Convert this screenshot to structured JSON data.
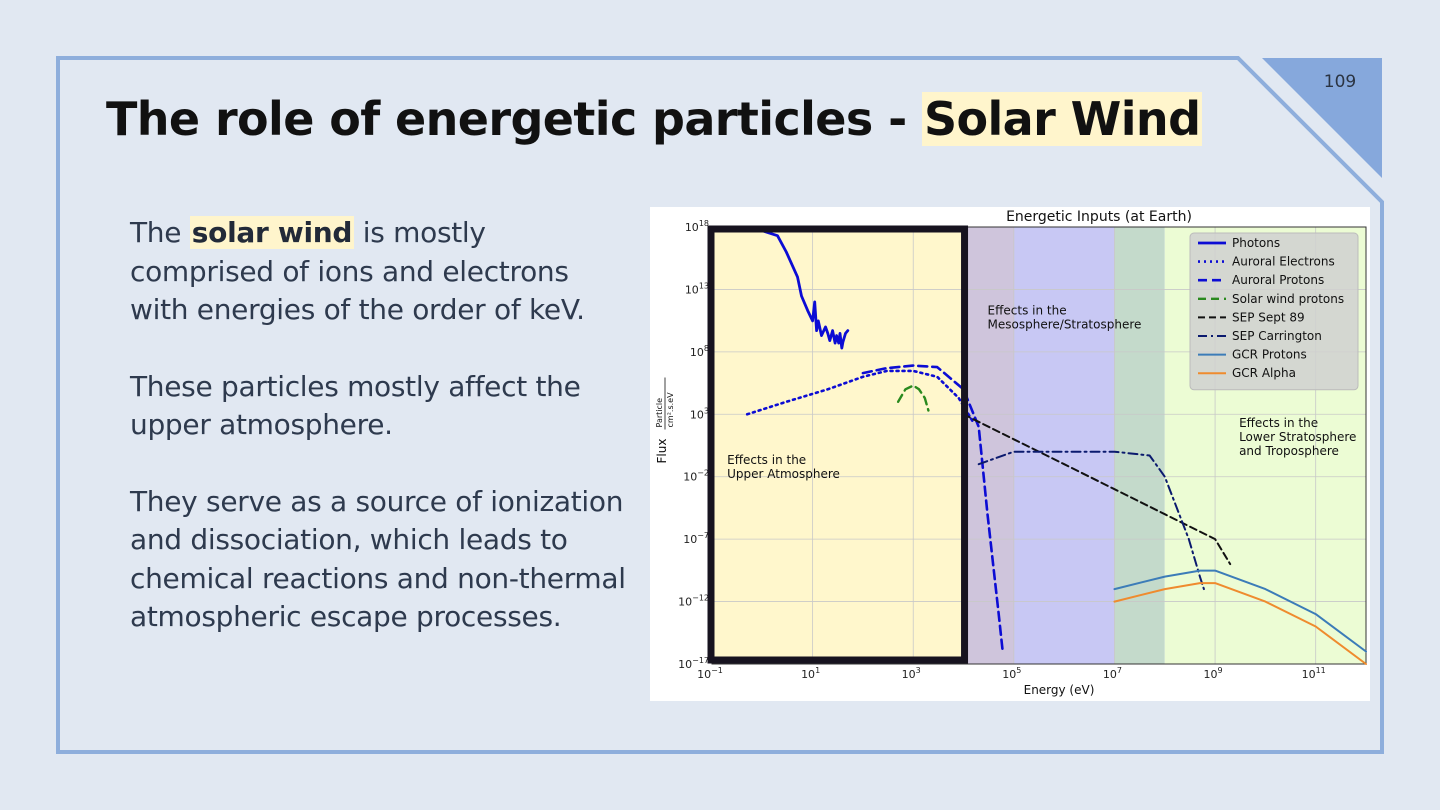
{
  "slide": {
    "page_number": "109",
    "title_prefix": "The role of energetic particles - ",
    "title_highlight": "Solar Wind"
  },
  "body": {
    "p1_prefix": "The ",
    "p1_bold": "solar wind",
    "p1_suffix": " is mostly comprised of ions and electrons with energies of the order of keV.",
    "p2": "These particles mostly affect the upper atmosphere.",
    "p3": "They serve as a source of ionization and dissociation, which leads to chemical reactions and non-thermal atmospheric escape processes."
  },
  "chart_data": {
    "type": "line",
    "title": "Energetic Inputs (at Earth)",
    "xlabel": "Energy (eV)",
    "ylabel": "Flux",
    "ylabel_unit_num": "Particle",
    "ylabel_unit_den": "cm².s.eV",
    "x_scale": "log",
    "y_scale": "log",
    "xlim": [
      0.1,
      1000000000000.0
    ],
    "ylim": [
      1e-17,
      1e+18
    ],
    "x_ticks": [
      {
        "v": 0.1,
        "base": "10",
        "exp": "−1"
      },
      {
        "v": 10,
        "base": "10",
        "exp": "1"
      },
      {
        "v": 1000,
        "base": "10",
        "exp": "3"
      },
      {
        "v": 100000,
        "base": "10",
        "exp": "5"
      },
      {
        "v": 10000000,
        "base": "10",
        "exp": "7"
      },
      {
        "v": 1000000000,
        "base": "10",
        "exp": "9"
      },
      {
        "v": 100000000000,
        "base": "10",
        "exp": "11"
      }
    ],
    "y_ticks": [
      {
        "v": 1e-17,
        "base": "10",
        "exp": "−17"
      },
      {
        "v": 1e-12,
        "base": "10",
        "exp": "−12"
      },
      {
        "v": 1e-07,
        "base": "10",
        "exp": "−7"
      },
      {
        "v": 0.01,
        "base": "10",
        "exp": "−2"
      },
      {
        "v": 1000,
        "base": "10",
        "exp": "3"
      },
      {
        "v": 100000000.0,
        "base": "10",
        "exp": "8"
      },
      {
        "v": 10000000000000.0,
        "base": "10",
        "exp": "13"
      },
      {
        "v": 1e+18,
        "base": "10",
        "exp": "18"
      }
    ],
    "grid": true,
    "legend_position": "top-right",
    "bands": [
      {
        "name": "upper-atmosphere",
        "x_from": 0.1,
        "x_to": 10000,
        "color": "#fff7cc"
      },
      {
        "name": "meso-strat",
        "x_from": 10000,
        "x_to": 100000,
        "color": "#cfc5dc"
      },
      {
        "name": "meso-strat-blue",
        "x_from": 100000,
        "x_to": 10000000,
        "color": "#c8c8f4"
      },
      {
        "name": "overlap",
        "x_from": 10000000,
        "x_to": 100000000,
        "color": "#c4dacb"
      },
      {
        "name": "lower-strat",
        "x_from": 100000000,
        "x_to": 1000000000000.0,
        "color": "#ecfcd4"
      }
    ],
    "region_labels": [
      {
        "lines": [
          "Effects in the",
          "Upper Atmosphere"
        ],
        "x": 0.2,
        "y": 0.1
      },
      {
        "lines": [
          "Effects in the",
          "Mesosphere/Stratosphere"
        ],
        "x": 30000,
        "y": 100000000000.0
      },
      {
        "lines": [
          "Effects in the",
          "Lower Stratosphere",
          "and Troposphere"
        ],
        "x": 3000000000,
        "y": 100.0
      }
    ],
    "highlight_box": {
      "x_from": 0.1,
      "x_to": 10000,
      "y_from": 1e-17,
      "y_to": 1e+18
    },
    "series": [
      {
        "name": "Photons",
        "color": "#0c0cd4",
        "dash": "",
        "width": 2.8,
        "points": [
          [
            0.5,
            1e+18
          ],
          [
            1,
            5e+17
          ],
          [
            2,
            2e+17
          ],
          [
            3,
            1e+16
          ],
          [
            5,
            100000000000000.0
          ],
          [
            6,
            3000000000000.0
          ],
          [
            8,
            200000000000.0
          ],
          [
            10,
            30000000000.0
          ],
          [
            11,
            1000000000000.0
          ],
          [
            12,
            5000000000.0
          ],
          [
            13,
            30000000000.0
          ],
          [
            15,
            2000000000.0
          ],
          [
            18,
            10000000000.0
          ],
          [
            20,
            3000000000.0
          ],
          [
            22,
            800000000.0
          ],
          [
            25,
            5000000000.0
          ],
          [
            28,
            500000000.0
          ],
          [
            30,
            2000000000.0
          ],
          [
            33,
            500000000.0
          ],
          [
            35,
            3000000000.0
          ],
          [
            38,
            200000000.0
          ],
          [
            40,
            600000000.0
          ],
          [
            45,
            3000000000.0
          ],
          [
            50,
            5000000000.0
          ]
        ]
      },
      {
        "name": "Auroral Electrons",
        "color": "#0c0cd4",
        "dash": "2 4",
        "width": 2.6,
        "points": [
          [
            0.5,
            1000
          ],
          [
            3,
            10000.0
          ],
          [
            20,
            100000.0
          ],
          [
            100,
            1000000.0
          ],
          [
            300,
            3000000.0
          ],
          [
            1000,
            3000000.0
          ],
          [
            3000,
            1000000.0
          ],
          [
            8000,
            20000.0
          ],
          [
            15000,
            300
          ]
        ]
      },
      {
        "name": "Auroral Protons",
        "color": "#0c0cd4",
        "dash": "9 5",
        "width": 2.6,
        "points": [
          [
            100,
            2000000.0
          ],
          [
            300,
            5000000.0
          ],
          [
            1000,
            8000000.0
          ],
          [
            3000,
            6000000.0
          ],
          [
            10000,
            100000.0
          ],
          [
            20000,
            100
          ],
          [
            30000,
            1e-05
          ],
          [
            50000,
            1e-13
          ],
          [
            60000,
            1e-16
          ]
        ]
      },
      {
        "name": "Solar wind  protons",
        "color": "#2a8a1e",
        "dash": "8 5",
        "width": 2.4,
        "points": [
          [
            500,
            10000.0
          ],
          [
            700,
            100000.0
          ],
          [
            1000,
            200000.0
          ],
          [
            1300,
            100000.0
          ],
          [
            1700,
            20000.0
          ],
          [
            2000,
            2000.0
          ]
        ]
      },
      {
        "name": "SEP Sept 89",
        "color": "#111111",
        "dash": "7 4",
        "width": 2.0,
        "points": [
          [
            10000,
            1000.0
          ],
          [
            100000,
            10.0
          ],
          [
            1000000,
            0.1
          ],
          [
            10000000,
            0.001
          ],
          [
            100000000,
            1e-05
          ],
          [
            1000000000,
            1e-07
          ],
          [
            2000000000,
            1e-09
          ]
        ]
      },
      {
        "name": "SEP Carrington",
        "color": "#0b1a6e",
        "dash": "9 4 2 4",
        "width": 2.0,
        "points": [
          [
            20000,
            0.1
          ],
          [
            100000,
            1
          ],
          [
            1000000,
            1
          ],
          [
            10000000,
            1
          ],
          [
            50000000,
            0.5
          ],
          [
            100000000,
            0.01
          ],
          [
            300000000,
            1e-07
          ],
          [
            500000000,
            1e-10
          ],
          [
            600000000,
            1e-11
          ]
        ]
      },
      {
        "name": "GCR Protons",
        "color": "#3c7cb8",
        "dash": "",
        "width": 2.0,
        "points": [
          [
            10000000,
            1e-11
          ],
          [
            100000000,
            1e-10
          ],
          [
            500000000,
            3e-10
          ],
          [
            1000000000,
            3e-10
          ],
          [
            10000000000,
            1e-11
          ],
          [
            100000000000,
            1e-13
          ],
          [
            1000000000000.0,
            1e-16
          ]
        ]
      },
      {
        "name": "GCR Alpha",
        "color": "#ef8b2e",
        "dash": "",
        "width": 2.0,
        "points": [
          [
            10000000,
            1e-12
          ],
          [
            100000000,
            1e-11
          ],
          [
            500000000,
            3e-11
          ],
          [
            1000000000,
            3e-11
          ],
          [
            10000000000,
            1e-12
          ],
          [
            100000000000,
            1e-14
          ],
          [
            1000000000000.0,
            1e-17
          ]
        ]
      }
    ]
  }
}
